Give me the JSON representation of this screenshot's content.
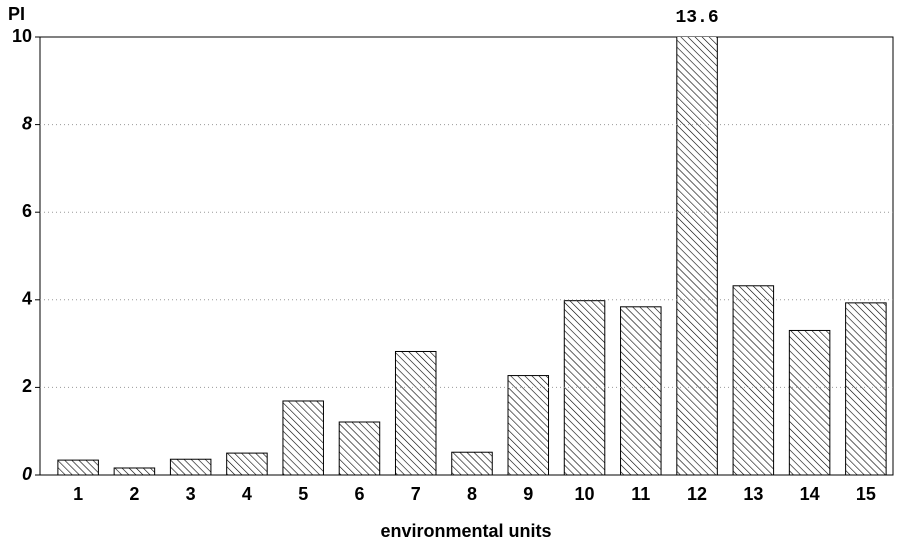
{
  "chart_data": {
    "type": "bar",
    "ylabel": "PI",
    "xlabel": "environmental units",
    "categories": [
      "1",
      "2",
      "3",
      "4",
      "5",
      "6",
      "7",
      "8",
      "9",
      "10",
      "11",
      "12",
      "13",
      "14",
      "15"
    ],
    "values": [
      0.34,
      0.16,
      0.36,
      0.5,
      1.69,
      1.21,
      2.82,
      0.52,
      2.27,
      3.98,
      3.84,
      13.6,
      4.32,
      3.3,
      3.93
    ],
    "value_labels": [
      null,
      null,
      null,
      null,
      null,
      null,
      null,
      null,
      null,
      null,
      null,
      "13.6",
      null,
      null,
      null
    ],
    "ylim": [
      0,
      10
    ],
    "yticks": [
      0,
      2,
      4,
      6,
      8,
      10
    ],
    "grid": true,
    "color": "#000000"
  }
}
